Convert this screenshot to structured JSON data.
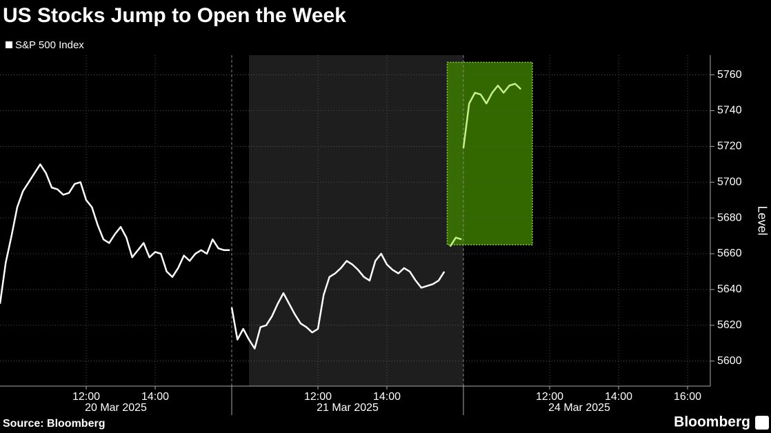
{
  "chart_data": {
    "type": "line",
    "title": "US Stocks Jump to Open the Week",
    "y_axis_label": "Level",
    "source": "Source: Bloomberg",
    "brand": "Bloomberg",
    "day_labels": [
      "20 Mar 2025",
      "21 Mar 2025",
      "24 Mar 2025"
    ],
    "x": [
      "2025-03-20 09:30",
      "2025-03-20 09:40",
      "2025-03-20 09:50",
      "2025-03-20 10:00",
      "2025-03-20 10:10",
      "2025-03-20 10:20",
      "2025-03-20 10:30",
      "2025-03-20 10:40",
      "2025-03-20 10:50",
      "2025-03-20 11:00",
      "2025-03-20 11:10",
      "2025-03-20 11:20",
      "2025-03-20 11:30",
      "2025-03-20 11:40",
      "2025-03-20 11:50",
      "2025-03-20 12:00",
      "2025-03-20 12:10",
      "2025-03-20 12:20",
      "2025-03-20 12:30",
      "2025-03-20 12:40",
      "2025-03-20 12:50",
      "2025-03-20 13:00",
      "2025-03-20 13:10",
      "2025-03-20 13:20",
      "2025-03-20 13:30",
      "2025-03-20 13:40",
      "2025-03-20 13:50",
      "2025-03-20 14:00",
      "2025-03-20 14:10",
      "2025-03-20 14:20",
      "2025-03-20 14:30",
      "2025-03-20 14:40",
      "2025-03-20 14:50",
      "2025-03-20 15:00",
      "2025-03-20 15:10",
      "2025-03-20 15:20",
      "2025-03-20 15:30",
      "2025-03-20 15:40",
      "2025-03-20 15:50",
      "2025-03-20 16:00",
      "2025-03-20 16:10",
      "2025-03-21 09:30",
      "2025-03-21 09:40",
      "2025-03-21 09:50",
      "2025-03-21 10:00",
      "2025-03-21 10:10",
      "2025-03-21 10:20",
      "2025-03-21 10:30",
      "2025-03-21 10:40",
      "2025-03-21 10:50",
      "2025-03-21 11:00",
      "2025-03-21 11:10",
      "2025-03-21 11:20",
      "2025-03-21 11:30",
      "2025-03-21 11:40",
      "2025-03-21 11:50",
      "2025-03-21 12:00",
      "2025-03-21 12:10",
      "2025-03-21 12:20",
      "2025-03-21 12:30",
      "2025-03-21 12:40",
      "2025-03-21 12:50",
      "2025-03-21 13:00",
      "2025-03-21 13:10",
      "2025-03-21 13:20",
      "2025-03-21 13:30",
      "2025-03-21 13:40",
      "2025-03-21 13:50",
      "2025-03-21 14:00",
      "2025-03-21 14:10",
      "2025-03-21 14:20",
      "2025-03-21 14:30",
      "2025-03-21 14:40",
      "2025-03-21 14:50",
      "2025-03-21 15:00",
      "2025-03-21 15:10",
      "2025-03-21 15:20",
      "2025-03-21 15:30",
      "2025-03-21 15:40",
      "2025-03-21 15:50",
      "2025-03-21 16:00",
      "2025-03-21 16:10",
      "2025-03-24 09:30",
      "2025-03-24 09:40",
      "2025-03-24 09:50",
      "2025-03-24 10:00",
      "2025-03-24 10:10",
      "2025-03-24 10:20",
      "2025-03-24 10:30",
      "2025-03-24 10:40",
      "2025-03-24 10:50",
      "2025-03-24 11:00",
      "2025-03-24 11:10"
    ],
    "series": [
      {
        "name": "S&P 500 Index",
        "color": "#ffffff",
        "values": [
          5632,
          5655,
          5670,
          5686,
          5695,
          5700,
          5705,
          5710,
          5705,
          5697,
          5696,
          5693,
          5694,
          5699,
          5700,
          5690,
          5686,
          5676,
          5668,
          5666,
          5671,
          5675,
          5669,
          5658,
          5662,
          5666,
          5658,
          5661,
          5660,
          5650,
          5647,
          5652,
          5659,
          5656,
          5660,
          5662,
          5660,
          5668,
          5663,
          5662,
          5662,
          5630,
          5612,
          5618,
          5612,
          5607,
          5619,
          5620,
          5625,
          5632,
          5638,
          5632,
          5626,
          5621,
          5619,
          5616,
          5618,
          5637,
          5647,
          5649,
          5652,
          5656,
          5654,
          5651,
          5647,
          5645,
          5656,
          5660,
          5654,
          5651,
          5649,
          5652,
          5650,
          5645,
          5641,
          5642,
          5643,
          5645,
          5650,
          5664,
          5669,
          5668,
          5719,
          5744,
          5750,
          5749,
          5744,
          5750,
          5754,
          5750,
          5754,
          5755,
          5752
        ]
      }
    ],
    "highlight": {
      "x": [
        "2025-03-21 15:45",
        "2025-03-24 11:30"
      ],
      "ylim": [
        5665,
        5767
      ],
      "fill": "#3c7a00",
      "border": "#8fd13f",
      "line_color": "#c6f08a"
    },
    "ylim": [
      5586,
      5771
    ],
    "yticks": [
      5600,
      5620,
      5640,
      5660,
      5680,
      5700,
      5720,
      5740,
      5760
    ],
    "xticks": [
      {
        "value": "2025-03-20 12:00",
        "label": "12:00"
      },
      {
        "value": "2025-03-20 14:00",
        "label": "14:00"
      },
      {
        "value": "2025-03-21 12:00",
        "label": "12:00"
      },
      {
        "value": "2025-03-21 14:00",
        "label": "14:00"
      },
      {
        "value": "2025-03-24 12:00",
        "label": "12:00"
      },
      {
        "value": "2025-03-24 14:00",
        "label": "14:00"
      },
      {
        "value": "2025-03-24 16:00",
        "label": "16:00"
      }
    ],
    "grid": true
  }
}
